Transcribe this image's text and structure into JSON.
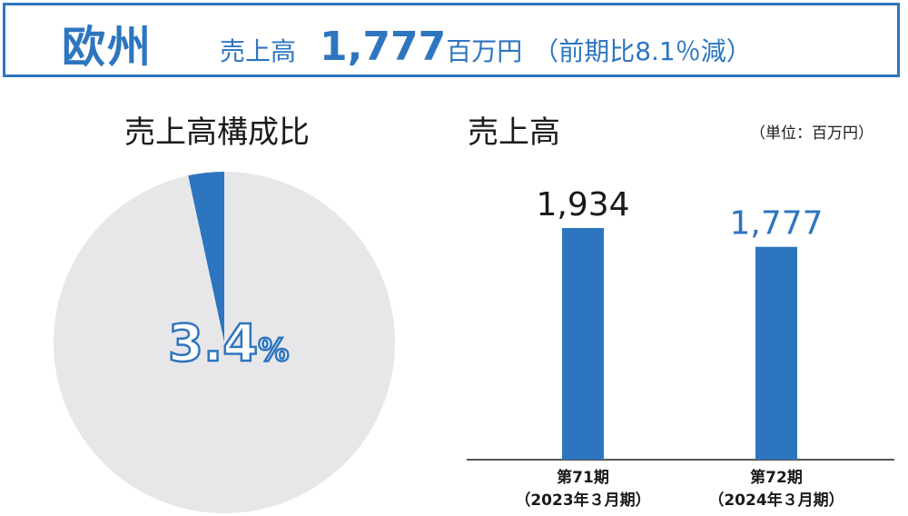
{
  "header": {
    "region": "欧州",
    "sales_label": "売上高",
    "sales_value": "1,777",
    "sales_unit": "百万円",
    "change": "（前期比8.1％減）"
  },
  "chart_data": [
    {
      "type": "pie",
      "title": "売上高構成比",
      "slices": [
        {
          "name": "",
          "value": 3.4,
          "color": "#2e75bf"
        },
        {
          "name": "",
          "value": 96.6,
          "color": "#e7e7e9"
        }
      ],
      "center_label": {
        "number": "3.4",
        "suffix": "%"
      }
    },
    {
      "type": "bar",
      "title": "売上高",
      "unit_note": "（単位：百万円）",
      "categories": [
        {
          "line1": "第71期",
          "line2": "（2023年３月期）"
        },
        {
          "line1": "第72期",
          "line2": "（2024年３月期）"
        }
      ],
      "values": [
        1934,
        1777
      ],
      "value_labels": [
        "1,934",
        "1,777"
      ],
      "value_label_colors": [
        "#1a1a1a",
        "#2e75bf"
      ],
      "bar_color": "#2e75bf",
      "ylim": [
        0,
        2700
      ]
    }
  ]
}
